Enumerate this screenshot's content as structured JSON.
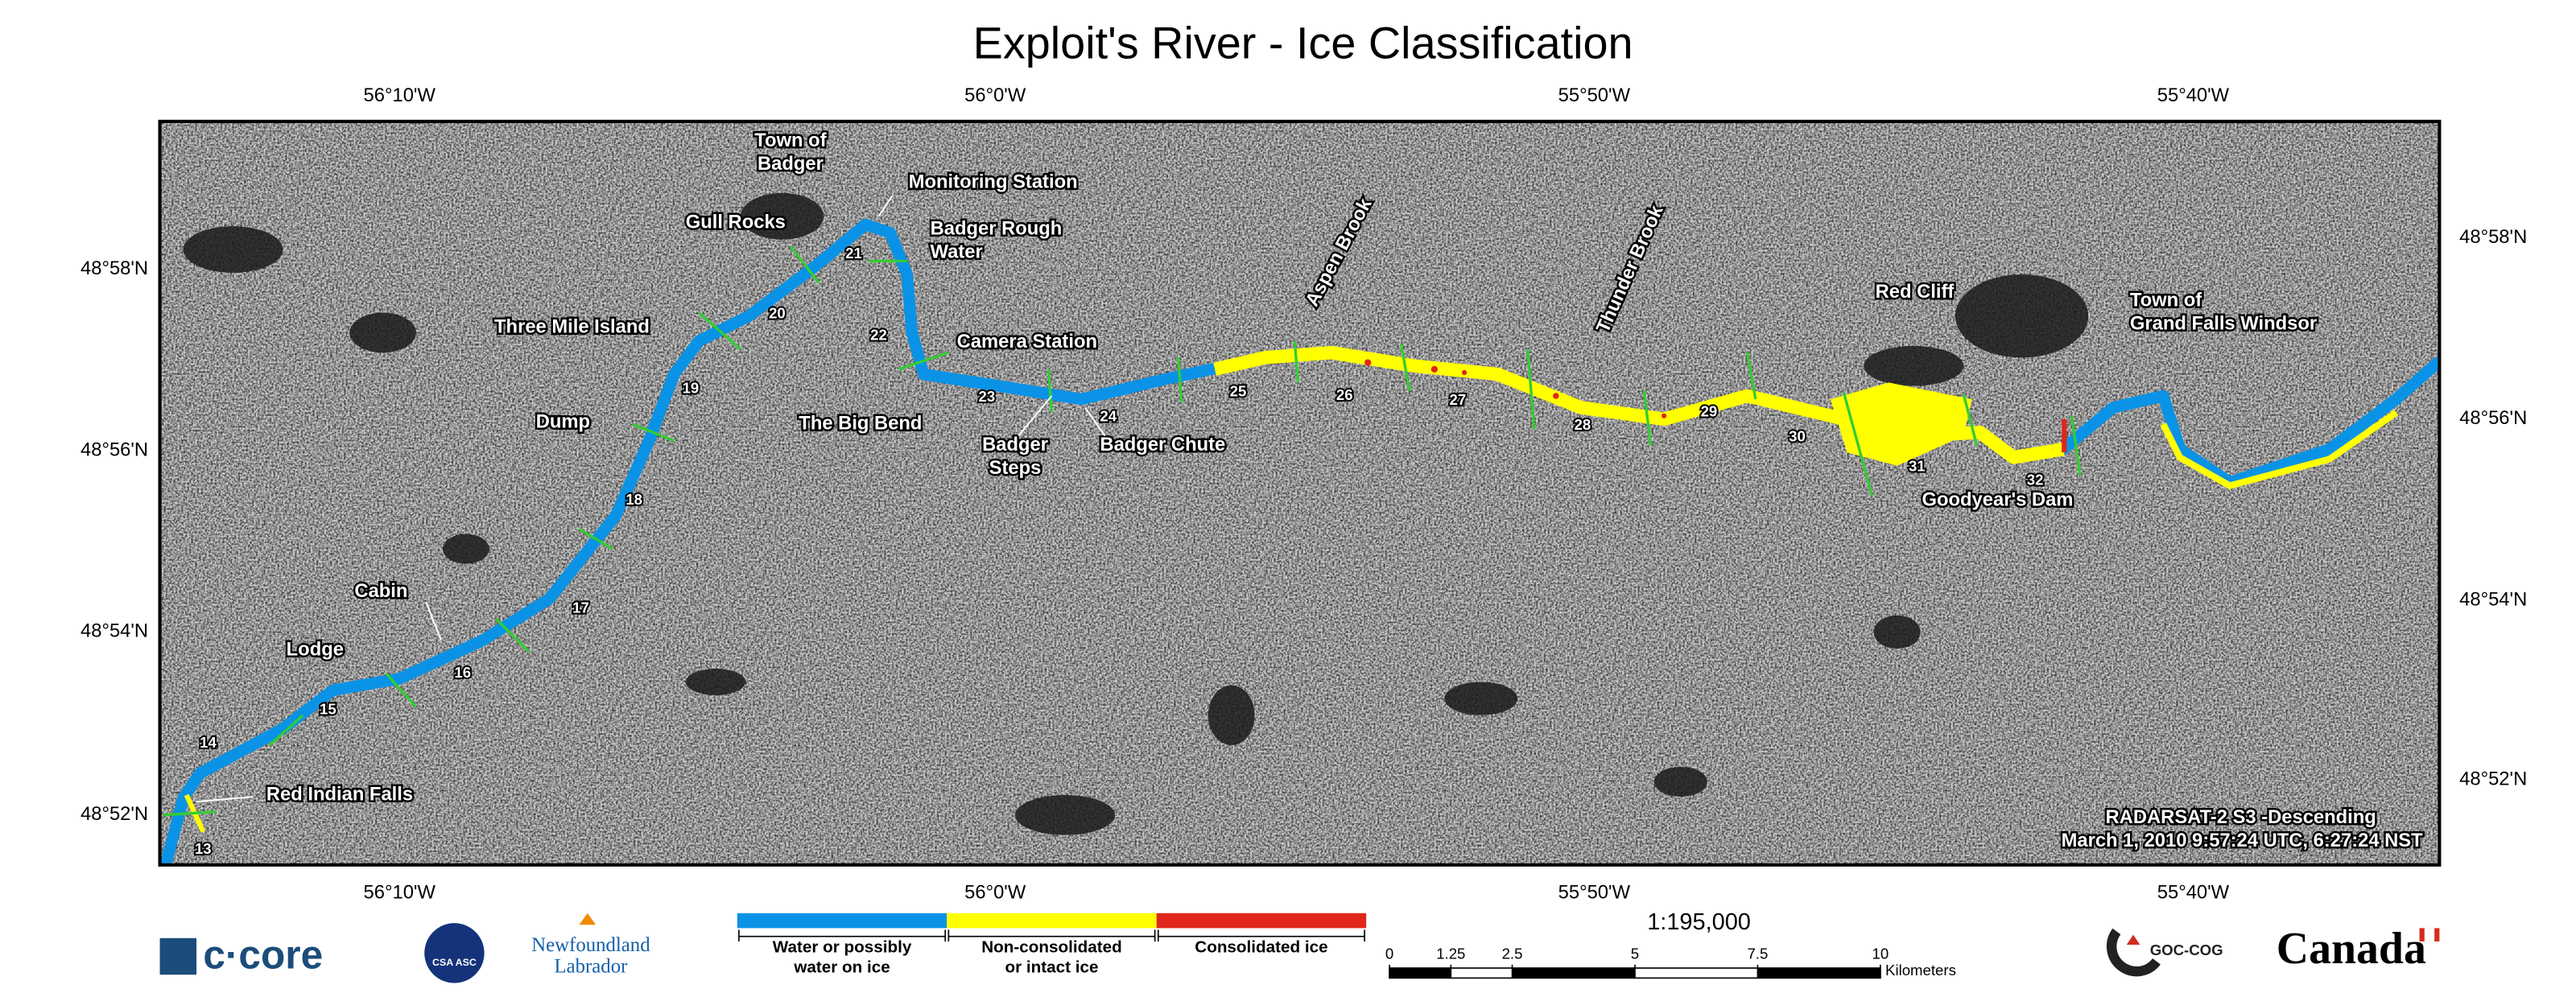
{
  "title": "Exploit's River - Ice Classification",
  "longitude_labels": [
    "56°10'W",
    "56°0'W",
    "55°50'W",
    "55°40'W"
  ],
  "latitude_labels_left": [
    "48°58'N",
    "48°56'N",
    "48°54'N",
    "48°52'N"
  ],
  "latitude_labels_right": [
    "48°58'N",
    "48°56'N",
    "48°54'N",
    "48°52'N"
  ],
  "places": [
    {
      "lines": [
        "Town of",
        "Badger"
      ]
    },
    {
      "lines": [
        "Monitoring Station"
      ]
    },
    {
      "lines": [
        "Gull Rocks"
      ]
    },
    {
      "lines": [
        "Badger Rough",
        "Water"
      ]
    },
    {
      "lines": [
        "Three Mile Island"
      ]
    },
    {
      "lines": [
        "Camera Station"
      ]
    },
    {
      "lines": [
        "The Big Bend"
      ]
    },
    {
      "lines": [
        "Dump"
      ]
    },
    {
      "lines": [
        "Badger",
        "Steps"
      ]
    },
    {
      "lines": [
        "Badger Chute"
      ]
    },
    {
      "lines": [
        "Aspen Brook"
      ]
    },
    {
      "lines": [
        "Thunder Brook"
      ]
    },
    {
      "lines": [
        "Red Cliff"
      ]
    },
    {
      "lines": [
        "Town of",
        "Grand Falls Windsor"
      ]
    },
    {
      "lines": [
        "Goodyear's Dam"
      ]
    },
    {
      "lines": [
        "Cabin"
      ]
    },
    {
      "lines": [
        "Lodge"
      ]
    },
    {
      "lines": [
        "Red Indian Falls"
      ]
    }
  ],
  "sections": [
    "13",
    "14",
    "15",
    "16",
    "17",
    "18",
    "19",
    "20",
    "21",
    "22",
    "23",
    "24",
    "25",
    "26",
    "27",
    "28",
    "29",
    "30",
    "31",
    "32"
  ],
  "acquisition": [
    "RADARSAT-2 S3 -Descending",
    "March 1, 2010 9:57:24 UTC, 6:27:24 NST"
  ],
  "legend": [
    {
      "color": "#0a93e6",
      "lines": [
        "Water or possibly",
        "water on ice"
      ]
    },
    {
      "color": "#ffff00",
      "lines": [
        "Non-consolidated",
        "or intact ice"
      ]
    },
    {
      "color": "#e0261b",
      "lines": [
        "Consolidated ice"
      ]
    }
  ],
  "scale": {
    "ratio": "1:195,000",
    "ticks": [
      0,
      1.25,
      2.5,
      5,
      7.5,
      10
    ],
    "unit": "Kilometers"
  },
  "logos": {
    "ccore": "c·core",
    "csa": "CSA ASC",
    "nl": [
      "Newfoundland",
      "Labrador"
    ],
    "goc": "GOC-COG",
    "canada": "Canada"
  }
}
